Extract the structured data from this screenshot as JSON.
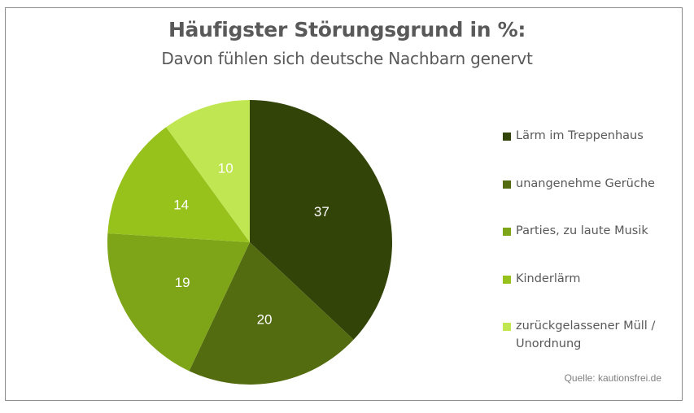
{
  "chart_data": {
    "type": "pie",
    "title": "Häufigster Störungsgrund in %:",
    "subtitle": "Davon fühlen sich deutsche Nachbarn genervt",
    "categories": [
      "Lärm im Treppenhaus",
      "unangenehme Gerüche",
      "Parties, zu laute Musik",
      "Kinderlärm",
      "zurückgelassener Müll / Unordnung"
    ],
    "values": [
      37,
      20,
      19,
      14,
      10
    ],
    "data_labels": [
      "37",
      "20",
      "19",
      "14",
      "10"
    ],
    "colors": [
      "#334409",
      "#546C10",
      "#7EA418",
      "#97C21C",
      "#C0E651"
    ],
    "start_angle": "12 o'clock",
    "direction": "clockwise",
    "legend_position": "right",
    "source": "Quelle: kautionsfrei.de"
  }
}
